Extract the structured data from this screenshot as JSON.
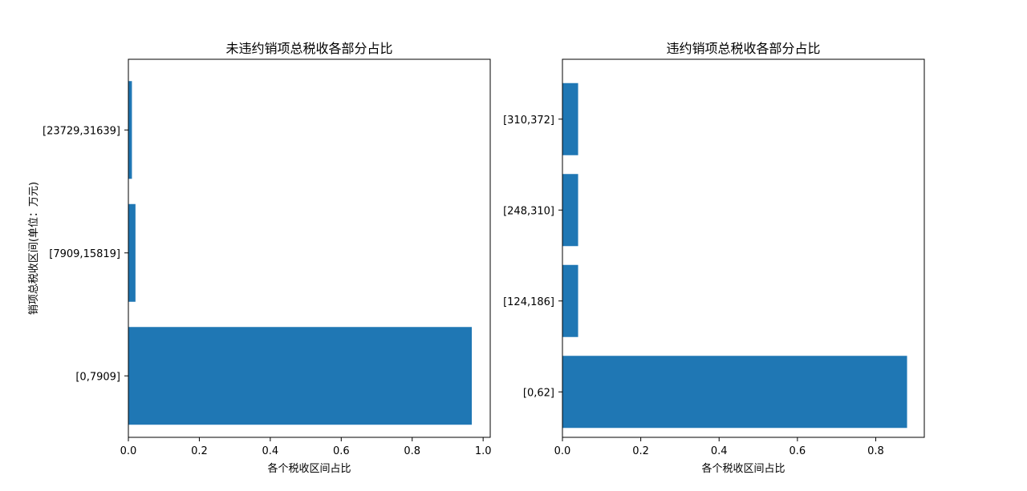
{
  "chart_data": [
    {
      "type": "bar",
      "orientation": "horizontal",
      "title": "未违约销项总税收各部分占比",
      "xlabel": "各个税收区间占比",
      "ylabel": "销项总税收区间(单位：万元)",
      "categories": [
        "[0,7909]",
        "[7909,15819]",
        "[23729,31639]"
      ],
      "values": [
        0.968,
        0.02,
        0.01
      ],
      "xlim": [
        0,
        1.02
      ],
      "xticks": [
        0,
        0.2,
        0.4,
        0.6,
        0.8,
        1.0
      ],
      "xtick_labels": [
        "0.0",
        "0.2",
        "0.4",
        "0.6",
        "0.8",
        "1.0"
      ],
      "color": "#1f77b4",
      "grid": false
    },
    {
      "type": "bar",
      "orientation": "horizontal",
      "title": "违约销项总税收各部分占比",
      "xlabel": "各个税收区间占比",
      "ylabel": "",
      "categories": [
        "[0,62]",
        "[124,186]",
        "[248,310]",
        "[310,372]"
      ],
      "values": [
        0.88,
        0.04,
        0.04,
        0.04
      ],
      "xlim": [
        0,
        0.924
      ],
      "xticks": [
        0,
        0.2,
        0.4,
        0.6,
        0.8
      ],
      "xtick_labels": [
        "0.0",
        "0.2",
        "0.4",
        "0.6",
        "0.8"
      ],
      "color": "#1f77b4",
      "grid": false
    }
  ]
}
